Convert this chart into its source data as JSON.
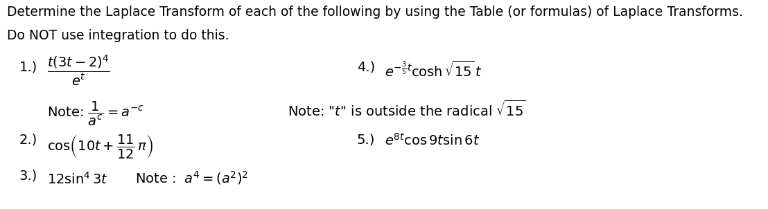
{
  "title_line1": "Determine the Laplace Transform of each of the following by using the Table (or formulas) of Laplace Transforms.",
  "title_line2": "Do NOT use integration to do this.",
  "background_color": "#ffffff",
  "text_color": "#000000",
  "figsize": [
    11.08,
    3.02
  ],
  "dpi": 100,
  "fs_title": 13.5,
  "fs_math": 14,
  "items": {
    "label1": "1.)",
    "formula1": "$\\dfrac{t(3t-2)^{4}}{e^{t}}$",
    "note1": "Note: $\\dfrac{1}{a^{c}} = a^{-c}$",
    "label2": "2.)",
    "formula2": "$\\cos\\!\\left(10t + \\dfrac{11}{12}\\,\\pi\\right)$",
    "label3": "3.)",
    "formula3": "$12\\sin^{4}3t$",
    "note3": "Note : $\\;a^{4} = \\left(a^{2}\\right)^{2}$",
    "label4": "4.)",
    "formula4": "$e^{-\\frac{3}{5}t}\\cosh\\sqrt{15}\\,t$",
    "note4": "Note: \"$t$\" is outside the radical $\\sqrt{15}$",
    "label5": "5.)",
    "formula5": "$e^{8t}\\cos 9t\\sin 6t$"
  }
}
